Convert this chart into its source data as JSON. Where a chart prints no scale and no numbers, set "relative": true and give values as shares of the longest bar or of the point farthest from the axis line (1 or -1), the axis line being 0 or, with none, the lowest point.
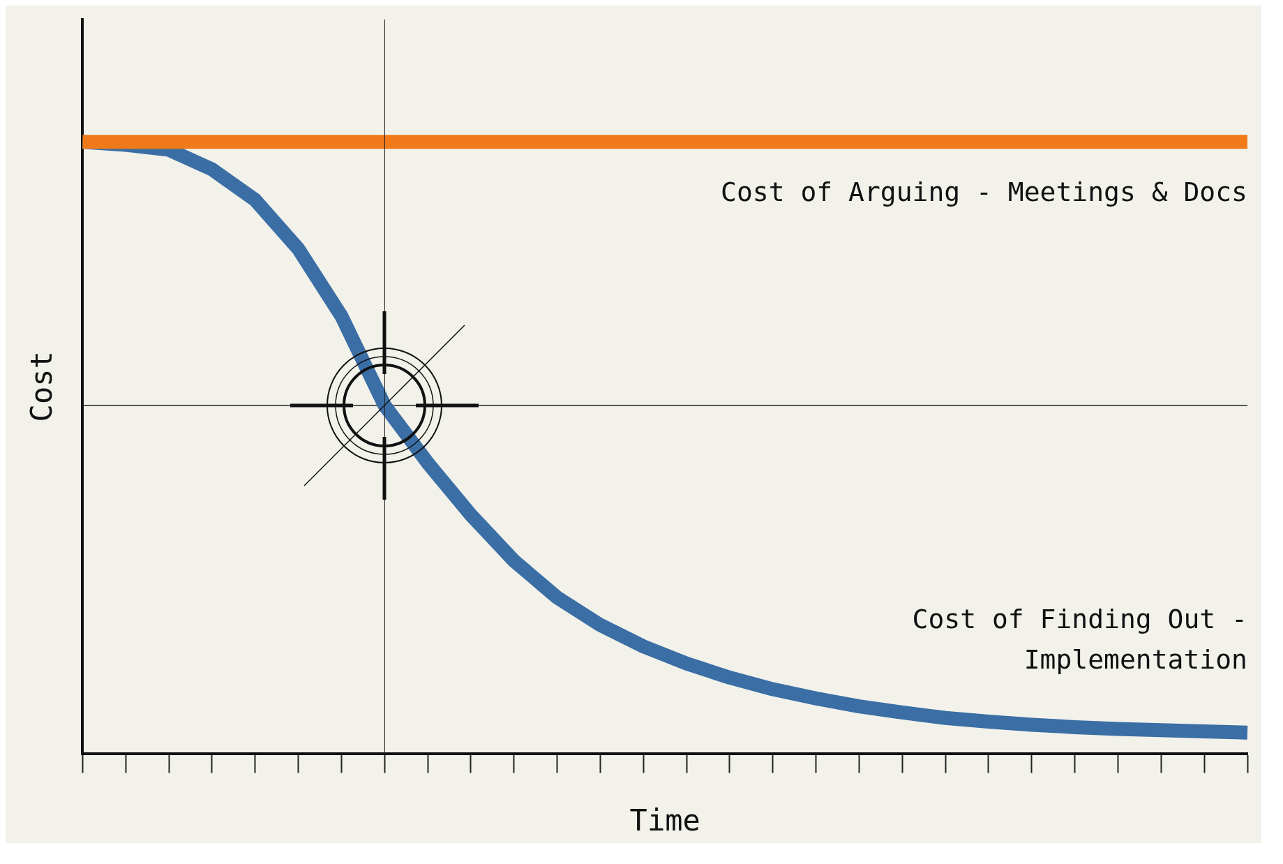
{
  "chart_data": {
    "type": "line",
    "relative": true,
    "xlabel": "Time",
    "ylabel": "Cost",
    "categories": [
      null,
      null,
      null,
      null,
      null,
      null,
      null,
      null,
      null,
      null,
      null,
      null,
      null,
      null,
      null,
      null,
      null,
      null,
      null,
      null,
      null,
      null,
      null,
      null,
      null,
      null,
      null,
      null
    ],
    "series": [
      {
        "name": "Cost of Arguing - Meetings & Docs",
        "color": "#f07a1a",
        "values": [
          1,
          1,
          1,
          1,
          1,
          1,
          1,
          1,
          1,
          1,
          1,
          1,
          1,
          1,
          1,
          1,
          1,
          1,
          1,
          1,
          1,
          1,
          1,
          1,
          1,
          1,
          1,
          1
        ]
      },
      {
        "name": "Cost of Finding Out - Implementation",
        "color": "#3a6ea5",
        "values": [
          1,
          0.995,
          0.987,
          0.955,
          0.905,
          0.825,
          0.715,
          0.569,
          0.475,
          0.39,
          0.315,
          0.255,
          0.21,
          0.175,
          0.147,
          0.124,
          0.105,
          0.09,
          0.077,
          0.067,
          0.058,
          0.052,
          0.047,
          0.043,
          0.04,
          0.038,
          0.036,
          0.034
        ]
      }
    ],
    "ref_lines": [
      {
        "axis": "y",
        "value": 0.569,
        "color": "#222222"
      }
    ],
    "grid": false,
    "legend": false,
    "marker": "none",
    "line_style": "solid"
  }
}
